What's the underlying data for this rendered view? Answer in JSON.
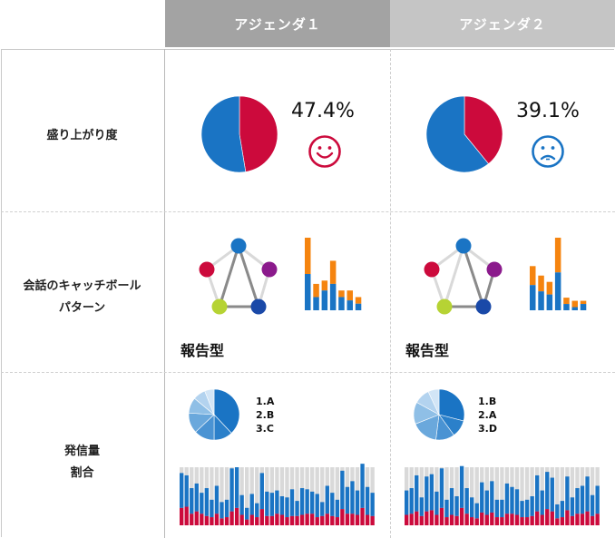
{
  "headers": {
    "agenda1": "アジェンダ１",
    "agenda2": "アジェンダ２"
  },
  "rows": {
    "excitement": "盛り上がり度",
    "catchball_line1": "会話のキャッチボール",
    "catchball_line2": "パターン",
    "ratio_line1": "発信量",
    "ratio_line2": "割合"
  },
  "agenda1": {
    "percent": "47.4%",
    "mood": "smile",
    "pattern_label": "報告型",
    "ranking": [
      "1.A",
      "2.B",
      "3.C"
    ]
  },
  "agenda2": {
    "percent": "39.1%",
    "mood": "sad",
    "pattern_label": "報告型",
    "ranking": [
      "1.B",
      "2.A",
      "3.D"
    ]
  },
  "colors": {
    "blue": "#1a74c4",
    "red": "#cc0a3c",
    "orange": "#f5840f",
    "purple": "#8b1a8c",
    "green": "#b6d334",
    "darkblue": "#1a49a8",
    "grey_bar": "#d9d9d9",
    "header1": "#a3a3a3",
    "header2": "#c5c5c5"
  },
  "chart_data": [
    {
      "type": "pie",
      "panel": "agenda1-excitement",
      "slices": [
        {
          "name": "red",
          "value": 47.4
        },
        {
          "name": "blue",
          "value": 52.6
        }
      ]
    },
    {
      "type": "pie",
      "panel": "agenda2-excitement",
      "slices": [
        {
          "name": "red",
          "value": 39.1
        },
        {
          "name": "blue",
          "value": 60.9
        }
      ]
    },
    {
      "type": "bar",
      "panel": "agenda1-catchball-bars",
      "stacked": true,
      "blue": [
        11,
        4,
        6,
        8,
        4,
        3,
        2
      ],
      "orange": [
        11,
        4,
        3,
        7,
        2,
        3,
        2
      ]
    },
    {
      "type": "bar",
      "panel": "agenda2-catchball-bars",
      "stacked": true,
      "blue": [
        8,
        6,
        5,
        12,
        2,
        1,
        2
      ],
      "orange": [
        6,
        5,
        4,
        11,
        2,
        2,
        1
      ]
    },
    {
      "type": "pie",
      "panel": "agenda1-ratio-pie",
      "slices": [
        38,
        12,
        13,
        13,
        10,
        8,
        6
      ]
    },
    {
      "type": "pie",
      "panel": "agenda2-ratio-pie",
      "slices": [
        29,
        11,
        12,
        17,
        14,
        10,
        7
      ]
    },
    {
      "type": "bar",
      "panel": "agenda1-ratio-bars",
      "stacked": true,
      "max": 100,
      "blue": [
        60,
        54,
        44,
        48,
        36,
        48,
        30,
        48,
        28,
        30,
        74,
        70,
        34,
        20,
        36,
        24,
        62,
        42,
        40,
        40,
        32,
        34,
        46,
        26,
        46,
        42,
        38,
        40,
        24,
        48,
        40,
        30,
        66,
        46,
        56,
        42,
        76,
        48,
        40
      ],
      "red": [
        30,
        32,
        20,
        24,
        20,
        16,
        14,
        20,
        12,
        14,
        24,
        30,
        18,
        10,
        18,
        14,
        28,
        16,
        16,
        20,
        18,
        14,
        16,
        16,
        18,
        20,
        20,
        14,
        16,
        20,
        16,
        14,
        28,
        20,
        20,
        18,
        30,
        18,
        16
      ]
    },
    {
      "type": "bar",
      "panel": "agenda2-ratio-bars",
      "stacked": true,
      "max": 100,
      "blue": [
        42,
        44,
        62,
        32,
        60,
        62,
        40,
        68,
        30,
        46,
        34,
        72,
        44,
        34,
        26,
        52,
        42,
        54,
        30,
        30,
        52,
        46,
        44,
        28,
        30,
        34,
        62,
        42,
        64,
        58,
        24,
        28,
        58,
        32,
        44,
        48,
        60,
        36,
        48
      ],
      "red": [
        18,
        20,
        24,
        16,
        24,
        26,
        18,
        30,
        14,
        18,
        16,
        30,
        20,
        14,
        12,
        22,
        18,
        22,
        14,
        14,
        20,
        20,
        18,
        14,
        14,
        16,
        24,
        18,
        28,
        24,
        12,
        14,
        26,
        16,
        20,
        20,
        24,
        16,
        20
      ]
    }
  ]
}
